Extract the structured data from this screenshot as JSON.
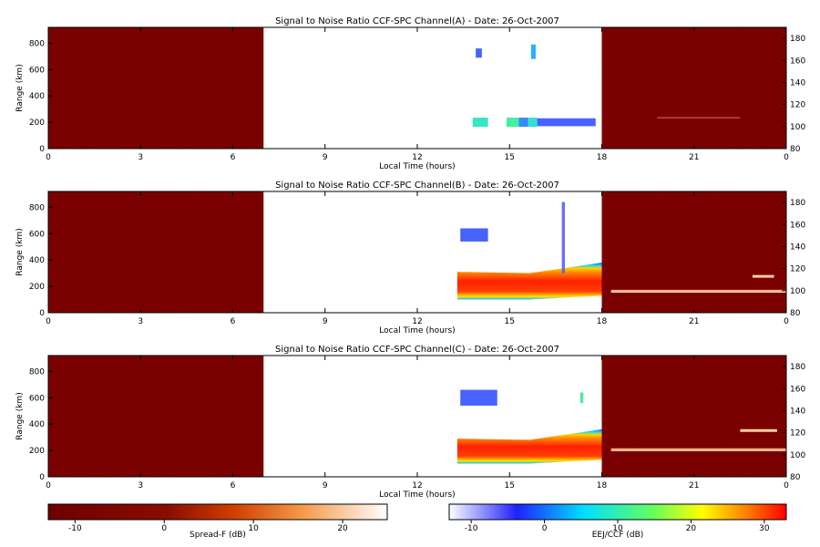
{
  "chart_data": [
    {
      "type": "heatmap",
      "title": "Signal to Noise Ratio CCF-SPC Channel(A) - Date: 26-Oct-2007",
      "xlabel": "Local Time (hours)",
      "ylabel": "Range (km)",
      "xlim": [
        0,
        24
      ],
      "ylim": [
        0,
        920
      ],
      "xticks": [
        "0",
        "3",
        "6",
        "9",
        "12",
        "15",
        "18",
        "21",
        "0"
      ],
      "yticks": [
        "0",
        "200",
        "400",
        "600",
        "800"
      ],
      "right_ylim": [
        80,
        190
      ],
      "right_yticks": [
        "80",
        "100",
        "120",
        "140",
        "160",
        "180"
      ],
      "spreadF_region_hours": [
        [
          0,
          7.0
        ],
        [
          18.0,
          24
        ]
      ],
      "eej_ccf_region_hours": [
        7.0,
        18.0
      ],
      "eej_layer": null,
      "blobs": [
        {
          "x": [
            13.8,
            14.3
          ],
          "range": [
            165,
            235
          ],
          "dB": 4
        },
        {
          "x": [
            14.9,
            15.3
          ],
          "range": [
            165,
            235
          ],
          "dB": 6
        },
        {
          "x": [
            15.3,
            15.6
          ],
          "range": [
            165,
            235
          ],
          "dB": -4
        },
        {
          "x": [
            15.6,
            15.9
          ],
          "range": [
            165,
            235
          ],
          "dB": 3
        },
        {
          "x": [
            15.9,
            17.8
          ],
          "range": [
            170,
            230
          ],
          "dB": -6
        },
        {
          "x": [
            13.9,
            14.1
          ],
          "range": [
            690,
            760
          ],
          "dB": -6
        },
        {
          "x": [
            15.7,
            15.85
          ],
          "range": [
            680,
            790
          ],
          "dB": -2
        }
      ],
      "upper_echo_hours": [
        19.8,
        22.5
      ],
      "upper_echo_height_km": 108
    },
    {
      "type": "heatmap",
      "title": "Signal to Noise Ratio CCF-SPC Channel(B) - Date: 26-Oct-2007",
      "xlabel": "Local Time (hours)",
      "ylabel": "Range (km)",
      "xlim": [
        0,
        24
      ],
      "ylim": [
        0,
        920
      ],
      "xticks": [
        "0",
        "3",
        "6",
        "9",
        "12",
        "15",
        "18",
        "21",
        "0"
      ],
      "yticks": [
        "0",
        "200",
        "400",
        "600",
        "800"
      ],
      "right_ylim": [
        80,
        190
      ],
      "right_yticks": [
        "80",
        "100",
        "120",
        "140",
        "160",
        "180"
      ],
      "spreadF_region_hours": [
        [
          0,
          7.0
        ],
        [
          18.0,
          24
        ]
      ],
      "eej_ccf_region_hours": [
        7.0,
        18.0
      ],
      "eej_layer": {
        "start_hour": 13.3,
        "end_hour": 18.0,
        "bottom_km": [
          100,
          100,
          130
        ],
        "top_km": [
          310,
          300,
          380
        ],
        "core_dB": 32
      },
      "blobs": [
        {
          "x": [
            13.4,
            14.3
          ],
          "range": [
            540,
            640
          ],
          "dB": -6
        },
        {
          "x": [
            16.7,
            16.8
          ],
          "range": [
            300,
            840
          ],
          "dB": -8
        }
      ],
      "upper_echo_hours": [
        18.3,
        24
      ],
      "upper_echo_height_km": 100,
      "secondary_echo": {
        "hours": [
          22.9,
          23.6
        ],
        "height_km": 113
      }
    },
    {
      "type": "heatmap",
      "title": "Signal to Noise Ratio CCF-SPC Channel(C) - Date: 26-Oct-2007",
      "xlabel": "Local Time (hours)",
      "ylabel": "Range (km)",
      "xlim": [
        0,
        24
      ],
      "ylim": [
        0,
        920
      ],
      "xticks": [
        "0",
        "3",
        "6",
        "9",
        "12",
        "15",
        "18",
        "21",
        "0"
      ],
      "yticks": [
        "0",
        "200",
        "400",
        "600",
        "800"
      ],
      "right_ylim": [
        80,
        190
      ],
      "right_yticks": [
        "80",
        "100",
        "120",
        "140",
        "160",
        "180"
      ],
      "spreadF_region_hours": [
        [
          0,
          7.0
        ],
        [
          18.0,
          24
        ]
      ],
      "eej_ccf_region_hours": [
        7.0,
        18.0
      ],
      "eej_layer": {
        "start_hour": 13.3,
        "end_hour": 18.0,
        "bottom_km": [
          100,
          100,
          130
        ],
        "top_km": [
          290,
          280,
          360
        ],
        "core_dB": 32
      },
      "blobs": [
        {
          "x": [
            13.4,
            14.6
          ],
          "range": [
            540,
            660
          ],
          "dB": -6
        },
        {
          "x": [
            17.3,
            17.4
          ],
          "range": [
            560,
            640
          ],
          "dB": 6
        }
      ],
      "upper_echo_hours": [
        18.3,
        24
      ],
      "upper_echo_height_km": 105,
      "secondary_echo": {
        "hours": [
          22.5,
          23.7
        ],
        "height_km": 122
      }
    }
  ],
  "colorbars": [
    {
      "label": "Spread-F (dB)",
      "ticks": [
        "-10",
        "0",
        "10",
        "20"
      ],
      "range": [
        -13,
        25
      ],
      "scheme": "dark-red-to-white"
    },
    {
      "label": "EEJ/CCF (dB)",
      "ticks": [
        "-10",
        "0",
        "10",
        "20",
        "30"
      ],
      "range": [
        -13,
        33
      ],
      "scheme": "white-blue-cyan-yellow-red"
    }
  ]
}
